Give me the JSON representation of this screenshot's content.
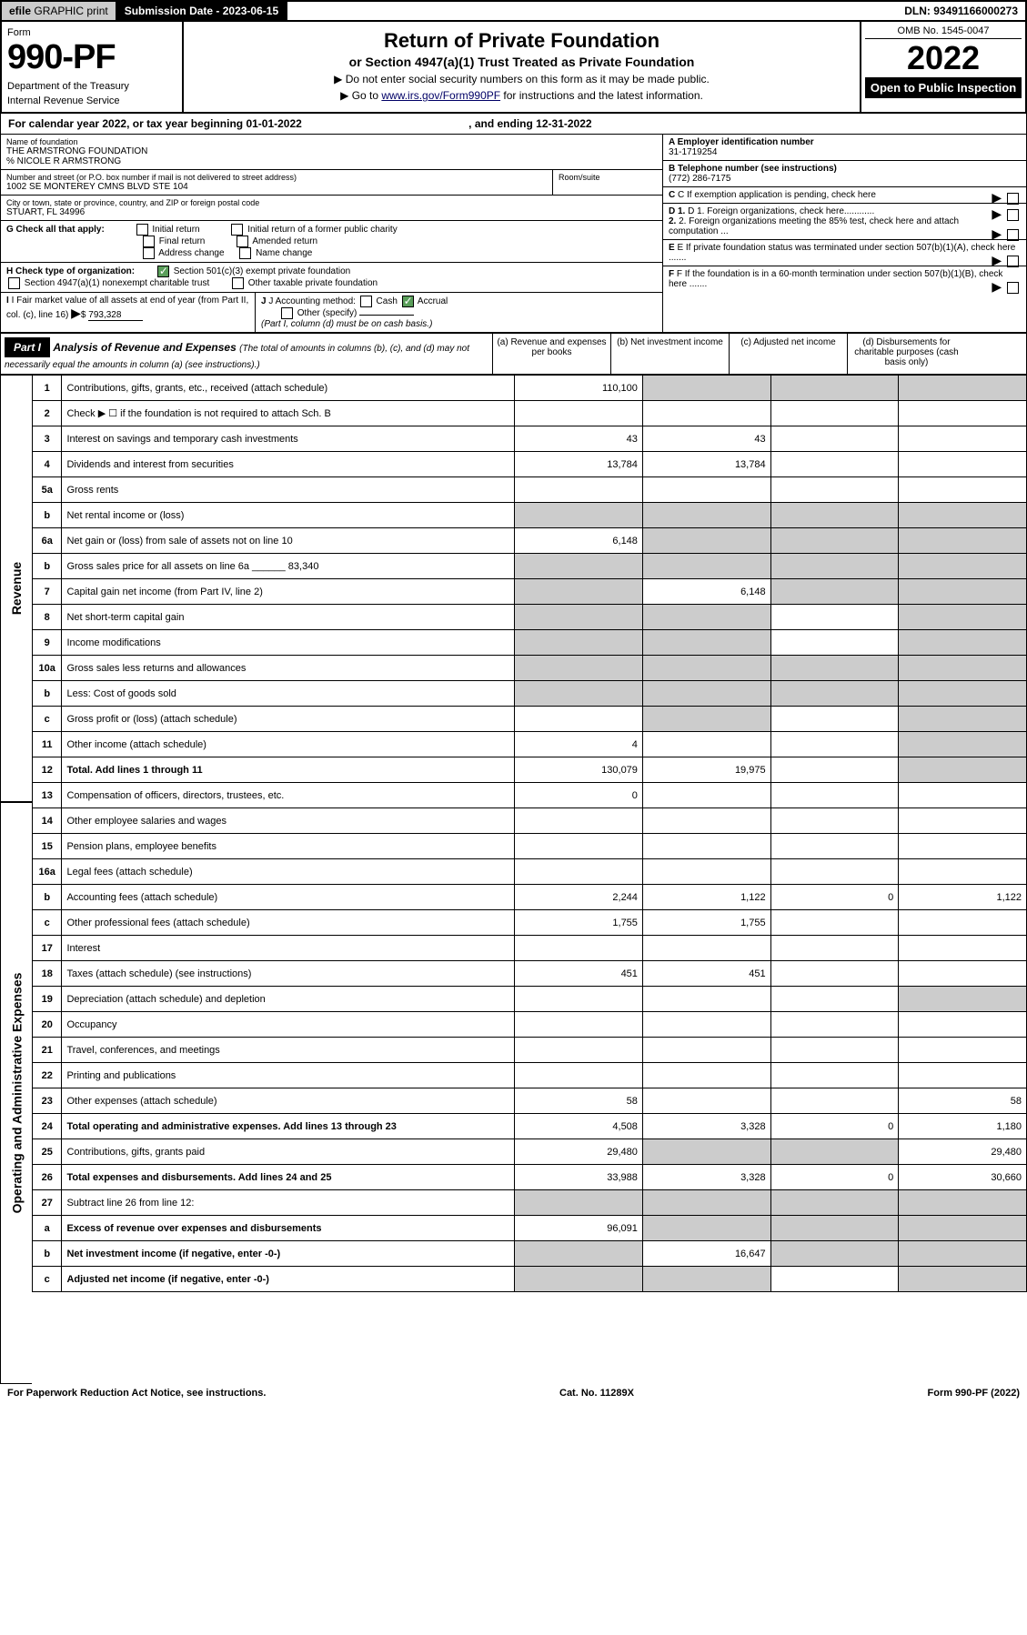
{
  "top": {
    "efile_prefix": "efile",
    "efile_text": "GRAPHIC print",
    "submission_label": "Submission Date - 2023-06-15",
    "dln": "DLN: 93491166000273"
  },
  "header": {
    "form_label": "Form",
    "form_number": "990-PF",
    "dept1": "Department of the Treasury",
    "dept2": "Internal Revenue Service",
    "title": "Return of Private Foundation",
    "subtitle": "or Section 4947(a)(1) Trust Treated as Private Foundation",
    "instr1": "▶ Do not enter social security numbers on this form as it may be made public.",
    "instr2_pre": "▶ Go to ",
    "instr2_link": "www.irs.gov/Form990PF",
    "instr2_post": " for instructions and the latest information.",
    "omb": "OMB No. 1545-0047",
    "year": "2022",
    "open": "Open to Public Inspection"
  },
  "calendar": {
    "text": "For calendar year 2022, or tax year beginning 01-01-2022",
    "ending": ", and ending 12-31-2022"
  },
  "entity": {
    "name_label": "Name of foundation",
    "name": "THE ARMSTRONG FOUNDATION",
    "care_of": "% NICOLE R ARMSTRONG",
    "street_label": "Number and street (or P.O. box number if mail is not delivered to street address)",
    "street": "1002 SE MONTEREY CMNS BLVD STE 104",
    "room_label": "Room/suite",
    "city_label": "City or town, state or province, country, and ZIP or foreign postal code",
    "city": "STUART, FL  34996",
    "ein_label": "A Employer identification number",
    "ein": "31-1719254",
    "phone_label": "B Telephone number (see instructions)",
    "phone": "(772) 286-7175",
    "c_label": "C If exemption application is pending, check here",
    "d1_label": "D 1. Foreign organizations, check here............",
    "d2_label": "2. Foreign organizations meeting the 85% test, check here and attach computation ...",
    "e_label": "E If private foundation status was terminated under section 507(b)(1)(A), check here .......",
    "f_label": "F If the foundation is in a 60-month termination under section 507(b)(1)(B), check here .......",
    "g_label": "G Check all that apply:",
    "g_opts": [
      "Initial return",
      "Initial return of a former public charity",
      "Final return",
      "Amended return",
      "Address change",
      "Name change"
    ],
    "h_label": "H Check type of organization:",
    "h_opt1": "Section 501(c)(3) exempt private foundation",
    "h_opt2": "Section 4947(a)(1) nonexempt charitable trust",
    "h_opt3": "Other taxable private foundation",
    "i_label": "I Fair market value of all assets at end of year (from Part II, col. (c), line 16)",
    "i_value": "793,328",
    "j_label": "J Accounting method:",
    "j_cash": "Cash",
    "j_accrual": "Accrual",
    "j_other": "Other (specify)",
    "j_note": "(Part I, column (d) must be on cash basis.)"
  },
  "part1": {
    "label": "Part I",
    "title": "Analysis of Revenue and Expenses",
    "title_note": "(The total of amounts in columns (b), (c), and (d) may not necessarily equal the amounts in column (a) (see instructions).)",
    "col_a": "(a) Revenue and expenses per books",
    "col_b": "(b) Net investment income",
    "col_c": "(c) Adjusted net income",
    "col_d": "(d) Disbursements for charitable purposes (cash basis only)"
  },
  "sections": {
    "revenue": "Revenue",
    "expenses": "Operating and Administrative Expenses"
  },
  "rows": [
    {
      "n": "1",
      "t": "Contributions, gifts, grants, etc., received (attach schedule)",
      "a": "110,100",
      "b": "",
      "c": "",
      "d": "",
      "bs": true,
      "cs": true,
      "ds": true
    },
    {
      "n": "2",
      "t": "Check ▶ ☐ if the foundation is not required to attach Sch. B",
      "a": "",
      "b": "",
      "c": "",
      "d": "",
      "dotted": true
    },
    {
      "n": "3",
      "t": "Interest on savings and temporary cash investments",
      "a": "43",
      "b": "43",
      "c": "",
      "d": ""
    },
    {
      "n": "4",
      "t": "Dividends and interest from securities",
      "a": "13,784",
      "b": "13,784",
      "c": "",
      "d": "",
      "dotted": true
    },
    {
      "n": "5a",
      "t": "Gross rents",
      "a": "",
      "b": "",
      "c": "",
      "d": "",
      "dotted": true
    },
    {
      "n": "b",
      "t": "Net rental income or (loss)",
      "a": "",
      "b": "",
      "c": "",
      "d": "",
      "as": true,
      "bs": true,
      "cs": true,
      "ds": true
    },
    {
      "n": "6a",
      "t": "Net gain or (loss) from sale of assets not on line 10",
      "a": "6,148",
      "b": "",
      "c": "",
      "d": "",
      "bs": true,
      "cs": true,
      "ds": true
    },
    {
      "n": "b",
      "t": "Gross sales price for all assets on line 6a ______ 83,340",
      "a": "",
      "b": "",
      "c": "",
      "d": "",
      "as": true,
      "bs": true,
      "cs": true,
      "ds": true
    },
    {
      "n": "7",
      "t": "Capital gain net income (from Part IV, line 2)",
      "a": "",
      "b": "6,148",
      "c": "",
      "d": "",
      "as": true,
      "cs": true,
      "ds": true,
      "dotted": true
    },
    {
      "n": "8",
      "t": "Net short-term capital gain",
      "a": "",
      "b": "",
      "c": "",
      "d": "",
      "as": true,
      "bs": true,
      "ds": true,
      "dotted": true
    },
    {
      "n": "9",
      "t": "Income modifications",
      "a": "",
      "b": "",
      "c": "",
      "d": "",
      "as": true,
      "bs": true,
      "ds": true,
      "dotted": true
    },
    {
      "n": "10a",
      "t": "Gross sales less returns and allowances",
      "a": "",
      "b": "",
      "c": "",
      "d": "",
      "as": true,
      "bs": true,
      "cs": true,
      "ds": true
    },
    {
      "n": "b",
      "t": "Less: Cost of goods sold",
      "a": "",
      "b": "",
      "c": "",
      "d": "",
      "as": true,
      "bs": true,
      "cs": true,
      "ds": true,
      "dotted": true
    },
    {
      "n": "c",
      "t": "Gross profit or (loss) (attach schedule)",
      "a": "",
      "b": "",
      "c": "",
      "d": "",
      "bs": true,
      "ds": true,
      "dotted": true
    },
    {
      "n": "11",
      "t": "Other income (attach schedule)",
      "a": "4",
      "b": "",
      "c": "",
      "d": "",
      "ds": true,
      "dotted": true
    },
    {
      "n": "12",
      "t": "Total. Add lines 1 through 11",
      "a": "130,079",
      "b": "19,975",
      "c": "",
      "d": "",
      "bold": true,
      "ds": true,
      "dotted": true
    },
    {
      "n": "13",
      "t": "Compensation of officers, directors, trustees, etc.",
      "a": "0",
      "b": "",
      "c": "",
      "d": ""
    },
    {
      "n": "14",
      "t": "Other employee salaries and wages",
      "a": "",
      "b": "",
      "c": "",
      "d": "",
      "dotted": true
    },
    {
      "n": "15",
      "t": "Pension plans, employee benefits",
      "a": "",
      "b": "",
      "c": "",
      "d": "",
      "dotted": true
    },
    {
      "n": "16a",
      "t": "Legal fees (attach schedule)",
      "a": "",
      "b": "",
      "c": "",
      "d": "",
      "dotted": true
    },
    {
      "n": "b",
      "t": "Accounting fees (attach schedule)",
      "a": "2,244",
      "b": "1,122",
      "c": "0",
      "d": "1,122",
      "dotted": true
    },
    {
      "n": "c",
      "t": "Other professional fees (attach schedule)",
      "a": "1,755",
      "b": "1,755",
      "c": "",
      "d": "",
      "dotted": true
    },
    {
      "n": "17",
      "t": "Interest",
      "a": "",
      "b": "",
      "c": "",
      "d": "",
      "dotted": true
    },
    {
      "n": "18",
      "t": "Taxes (attach schedule) (see instructions)",
      "a": "451",
      "b": "451",
      "c": "",
      "d": "",
      "dotted": true
    },
    {
      "n": "19",
      "t": "Depreciation (attach schedule) and depletion",
      "a": "",
      "b": "",
      "c": "",
      "d": "",
      "ds": true,
      "dotted": true
    },
    {
      "n": "20",
      "t": "Occupancy",
      "a": "",
      "b": "",
      "c": "",
      "d": "",
      "dotted": true
    },
    {
      "n": "21",
      "t": "Travel, conferences, and meetings",
      "a": "",
      "b": "",
      "c": "",
      "d": "",
      "dotted": true
    },
    {
      "n": "22",
      "t": "Printing and publications",
      "a": "",
      "b": "",
      "c": "",
      "d": "",
      "dotted": true
    },
    {
      "n": "23",
      "t": "Other expenses (attach schedule)",
      "a": "58",
      "b": "",
      "c": "",
      "d": "58",
      "dotted": true
    },
    {
      "n": "24",
      "t": "Total operating and administrative expenses. Add lines 13 through 23",
      "a": "4,508",
      "b": "3,328",
      "c": "0",
      "d": "1,180",
      "bold": true,
      "dotted": true
    },
    {
      "n": "25",
      "t": "Contributions, gifts, grants paid",
      "a": "29,480",
      "b": "",
      "c": "",
      "d": "29,480",
      "bs": true,
      "cs": true,
      "dotted": true
    },
    {
      "n": "26",
      "t": "Total expenses and disbursements. Add lines 24 and 25",
      "a": "33,988",
      "b": "3,328",
      "c": "0",
      "d": "30,660",
      "bold": true
    },
    {
      "n": "27",
      "t": "Subtract line 26 from line 12:",
      "a": "",
      "b": "",
      "c": "",
      "d": "",
      "as": true,
      "bs": true,
      "cs": true,
      "ds": true
    },
    {
      "n": "a",
      "t": "Excess of revenue over expenses and disbursements",
      "a": "96,091",
      "b": "",
      "c": "",
      "d": "",
      "bold": true,
      "bs": true,
      "cs": true,
      "ds": true
    },
    {
      "n": "b",
      "t": "Net investment income (if negative, enter -0-)",
      "a": "",
      "b": "16,647",
      "c": "",
      "d": "",
      "bold": true,
      "as": true,
      "cs": true,
      "ds": true
    },
    {
      "n": "c",
      "t": "Adjusted net income (if negative, enter -0-)",
      "a": "",
      "b": "",
      "c": "",
      "d": "",
      "bold": true,
      "as": true,
      "bs": true,
      "ds": true,
      "dotted": true
    }
  ],
  "footer": {
    "left": "For Paperwork Reduction Act Notice, see instructions.",
    "mid": "Cat. No. 11289X",
    "right": "Form 990-PF (2022)"
  }
}
